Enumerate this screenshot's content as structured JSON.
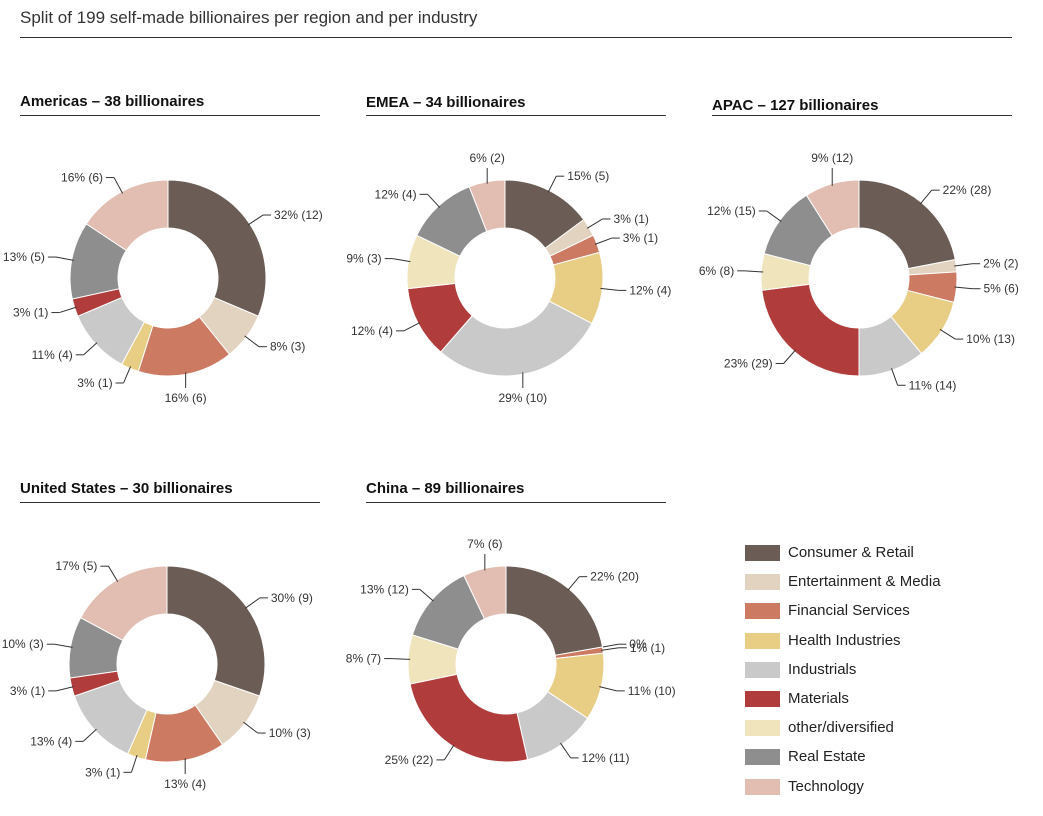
{
  "title": "Split of 199 self-made billionaires per region and per industry",
  "categories": [
    "Consumer & Retail",
    "Entertainment & Media",
    "Financial Services",
    "Health Industries",
    "Industrials",
    "Materials",
    "other/diversified",
    "Real Estate",
    "Technology"
  ],
  "colors": [
    "#6b5d55",
    "#e2d2c0",
    "#cc7a62",
    "#e8cd85",
    "#c9c9c9",
    "#b03c3c",
    "#f0e4bd",
    "#8e8e8e",
    "#e2bdb1"
  ],
  "chart_data": [
    {
      "type": "pie",
      "title": "Americas – 38 billionaires",
      "values": [
        32,
        8,
        16,
        3,
        11,
        3,
        0,
        13,
        16
      ],
      "labels": [
        "32% (12)",
        "8% (3)",
        "16% (6)",
        "3% (1)",
        "11% (4)",
        "3% (1)",
        "",
        "13% (5)",
        "16% (6)"
      ]
    },
    {
      "type": "pie",
      "title": "EMEA – 34 billionaires",
      "values": [
        15,
        3,
        3,
        12,
        29,
        12,
        9,
        12,
        6
      ],
      "labels": [
        "15% (5)",
        "3% (1)",
        "3% (1)",
        "12% (4)",
        "29% (10)",
        "12% (4)",
        "9% (3)",
        "12% (4)",
        "6% (2)"
      ]
    },
    {
      "type": "pie",
      "title": "APAC – 127 billionaires",
      "values": [
        22,
        2,
        5,
        10,
        11,
        23,
        6,
        12,
        9
      ],
      "labels": [
        "22% (28)",
        "2% (2)",
        "5% (6)",
        "10% (13)",
        "11% (14)",
        "23% (29)",
        "6% (8)",
        "12% (15)",
        "9% (12)"
      ]
    },
    {
      "type": "pie",
      "title": "United States – 30 billionaires",
      "values": [
        30,
        10,
        13,
        3,
        13,
        3,
        0,
        10,
        17
      ],
      "labels": [
        "30% (9)",
        "10% (3)",
        "13% (4)",
        "3% (1)",
        "13% (4)",
        "3% (1)",
        "",
        "10% (3)",
        "17% (5)"
      ]
    },
    {
      "type": "pie",
      "title": "China – 89 billionaires",
      "values": [
        22,
        0,
        1,
        11,
        12,
        25,
        8,
        13,
        7
      ],
      "labels": [
        "22% (20)",
        "0%",
        "1% (1)",
        "11% (10)",
        "12% (11)",
        "25% (22)",
        "8% (7)",
        "13% (12)",
        "7% (6)"
      ]
    }
  ]
}
